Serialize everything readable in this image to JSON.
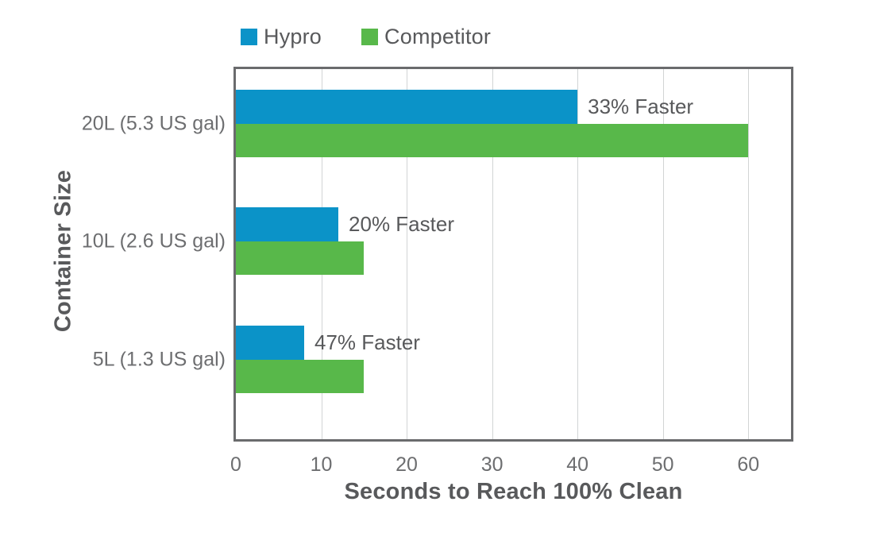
{
  "legend": {
    "items": [
      {
        "label": "Hypro"
      },
      {
        "label": "Competitor"
      }
    ]
  },
  "chart_data": {
    "type": "bar",
    "orientation": "horizontal",
    "title": "",
    "categories": [
      "20L (5.3 US gal)",
      "10L (2.6 US gal)",
      "5L (1.3 US gal)"
    ],
    "series": [
      {
        "name": "Hypro",
        "color": "#0b93c8",
        "values": [
          40,
          12,
          8
        ]
      },
      {
        "name": "Competitor",
        "color": "#58b84a",
        "values": [
          60,
          15,
          15
        ]
      }
    ],
    "bar_labels": [
      "33% Faster",
      "20% Faster",
      "47% Faster"
    ],
    "xlabel": "Seconds to Reach 100% Clean",
    "ylabel": "Container Size",
    "xlim": [
      0,
      65
    ],
    "xticks": [
      0,
      10,
      20,
      30,
      40,
      50,
      60
    ],
    "grid": true,
    "legend_position": "top"
  },
  "colors": {
    "hypro": "#0b93c8",
    "competitor": "#58b84a",
    "frame": "#6a6b6d",
    "gridline": "#d2d4d5",
    "tick_text": "#6d6e70",
    "title_text": "#58595b"
  }
}
